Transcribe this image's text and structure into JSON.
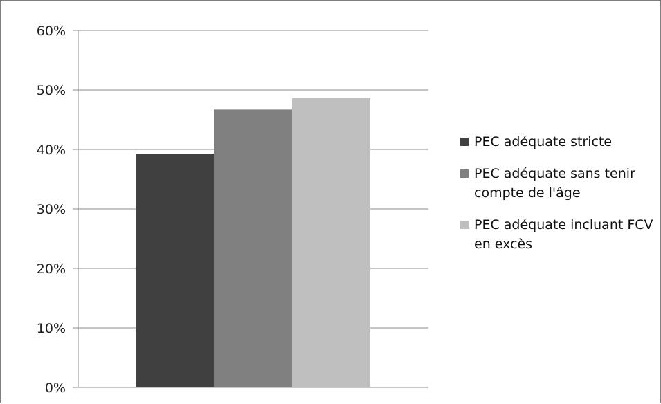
{
  "chart_data": {
    "type": "bar",
    "title": "",
    "xlabel": "",
    "ylabel": "",
    "ylim": [
      0,
      60
    ],
    "yticks": [
      "0%",
      "10%",
      "20%",
      "30%",
      "40%",
      "50%",
      "60%"
    ],
    "grid": true,
    "legend_position": "right",
    "series": [
      {
        "name": "PEC adéquate stricte",
        "value": 39.3,
        "color": "#404040"
      },
      {
        "name": "PEC adéquate sans tenir compte de l'âge",
        "value": 46.7,
        "color": "#808080"
      },
      {
        "name": "PEC adéquate incluant FCV en excès",
        "value": 48.6,
        "color": "#bfbfbf"
      }
    ]
  }
}
